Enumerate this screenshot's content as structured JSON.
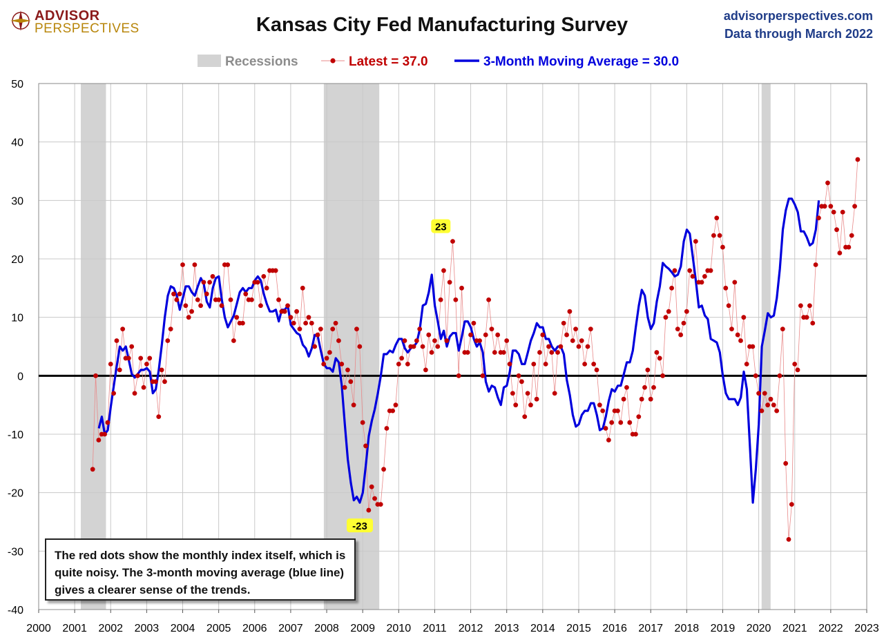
{
  "logo": {
    "line1": "ADVISOR",
    "line2": "PERSPECTIVES"
  },
  "header": {
    "title": "Kansas City Fed Manufacturing Survey",
    "site": "advisorperspectives.com",
    "data_through": "Data through March 2022"
  },
  "note": "The red dots show the monthly  index itself, which is quite noisy. The 3-month moving average (blue line) gives a clearer sense of the trends.",
  "colors": {
    "index": "#c00000",
    "ma": "#0000dd",
    "recession": "#d3d3d3",
    "zero_line": "#000000",
    "grid": "#c8c8c8",
    "callout": "#ffff33"
  },
  "chart_data": {
    "type": "line",
    "x_axis": {
      "min": 2000,
      "max": 2023,
      "ticks": [
        "2000",
        "2001",
        "2002",
        "2003",
        "2004",
        "2005",
        "2006",
        "2007",
        "2008",
        "2009",
        "2010",
        "2011",
        "2012",
        "2013",
        "2014",
        "2015",
        "2016",
        "2017",
        "2018",
        "2019",
        "2020",
        "2021",
        "2022",
        "2023"
      ]
    },
    "y_axis": {
      "min": -40,
      "max": 50,
      "ticks": [
        "-40",
        "-30",
        "-20",
        "-10",
        "0",
        "10",
        "20",
        "30",
        "40",
        "50"
      ]
    },
    "grid": true,
    "legend": {
      "placement": "top",
      "entries": [
        {
          "label": "Recessions",
          "kind": "band"
        },
        {
          "label": "Latest = 37.0",
          "kind": "dots"
        },
        {
          "label": "3-Month Moving Average = 30.0",
          "kind": "line"
        }
      ]
    },
    "recessions": [
      [
        2001.17,
        2001.87
      ],
      [
        2007.92,
        2009.46
      ],
      [
        2020.08,
        2020.33
      ]
    ],
    "annotations": [
      {
        "label": "23",
        "x": 2011.17,
        "y": 23
      },
      {
        "label": "-23",
        "x": 2008.92,
        "y": -23
      }
    ],
    "series": [
      {
        "name": "Latest = 37.0",
        "start": 2001.5,
        "step": 0.08333,
        "values": [
          -16,
          0,
          -11,
          -10,
          -10,
          -8,
          2,
          -3,
          6,
          1,
          8,
          3,
          3,
          5,
          -3,
          0,
          3,
          -2,
          2,
          3,
          -1,
          -1,
          -7,
          1,
          -1,
          6,
          8,
          14,
          13,
          14,
          19,
          12,
          10,
          11,
          19,
          13,
          12,
          16,
          14,
          16,
          17,
          13,
          13,
          12,
          19,
          19,
          13,
          6,
          10,
          9,
          9,
          14,
          13,
          13,
          16,
          16,
          12,
          17,
          15,
          18,
          18,
          18,
          13,
          11,
          11,
          12,
          10,
          9,
          11,
          8,
          15,
          9,
          10,
          9,
          5,
          7,
          8,
          2,
          3,
          4,
          8,
          9,
          6,
          2,
          -2,
          1,
          -1,
          -5,
          8,
          5,
          -8,
          -12,
          -23,
          -19,
          -21,
          -22,
          -22,
          -16,
          -9,
          -6,
          -6,
          -5,
          2,
          3,
          6,
          2,
          5,
          5,
          6,
          8,
          5,
          1,
          7,
          4,
          6,
          5,
          13,
          18,
          6,
          16,
          23,
          13,
          0,
          15,
          4,
          4,
          7,
          9,
          6,
          6,
          0,
          7,
          13,
          8,
          4,
          7,
          4,
          4,
          6,
          2,
          -3,
          -5,
          0,
          -1,
          -7,
          -3,
          -5,
          2,
          -4,
          4,
          7,
          2,
          5,
          4,
          -3,
          4,
          5,
          9,
          7,
          11,
          6,
          8,
          5,
          6,
          2,
          5,
          8,
          2,
          1,
          -5,
          -6,
          -9,
          -11,
          -8,
          -6,
          -6,
          -8,
          -4,
          -2,
          -8,
          -10,
          -10,
          -7,
          -4,
          -2,
          1,
          -4,
          -2,
          4,
          3,
          0,
          10,
          11,
          15,
          18,
          8,
          7,
          9,
          11,
          18,
          17,
          23,
          16,
          16,
          17,
          18,
          18,
          24,
          27,
          24,
          22,
          15,
          12,
          8,
          16,
          7,
          6,
          10,
          2,
          5,
          5,
          0,
          -3,
          -6,
          -3,
          -5,
          -4,
          -5,
          -6,
          0,
          8,
          -15,
          -28,
          -22,
          2,
          1,
          12,
          10,
          10,
          12,
          9,
          19,
          27,
          29,
          29,
          33,
          29,
          28,
          25,
          21,
          28,
          22,
          22,
          24,
          29,
          37
        ]
      },
      {
        "name": "3-Month Moving Average = 30.0",
        "start": 2001.67,
        "step": 0.08333,
        "values": [
          -9,
          -7,
          -10,
          -9.3,
          -5.3,
          -1.7,
          1.7,
          5,
          4.3,
          5,
          2.7,
          0.3,
          -0.3,
          0.3,
          1,
          1,
          1.3,
          0.7,
          -3,
          -2.3,
          1,
          5.3,
          10,
          13.7,
          15.3,
          15,
          13.7,
          11.3,
          13.3,
          15.3,
          15.3,
          14.3,
          13.7,
          15.3,
          16.7,
          15.7,
          12.7,
          11.7,
          15,
          16.7,
          17,
          13,
          10,
          8.3,
          9.3,
          10.3,
          12.3,
          14.3,
          15,
          14.3,
          15,
          15,
          16.3,
          17,
          16.3,
          14,
          12.3,
          11,
          11,
          11.3,
          9.3,
          11.3,
          11.3,
          12,
          8.7,
          8,
          7.3,
          7,
          5.3,
          4.7,
          3.3,
          4.7,
          7,
          6.7,
          4.3,
          2,
          1.3,
          1.3,
          0.7,
          3,
          2.3,
          -1.7,
          -8.3,
          -14.3,
          -18.3,
          -21.3,
          -20.7,
          -21.7,
          -20,
          -15.3,
          -10.3,
          -7.7,
          -5.7,
          -3,
          0,
          3.7,
          3.7,
          4.3,
          4,
          5.3,
          6.3,
          6.3,
          4.7,
          4,
          4.7,
          5,
          5.7,
          8,
          12,
          12.3,
          14.3,
          17.3,
          12,
          9.3,
          6.3,
          7.7,
          5,
          6.7,
          7.3,
          7.3,
          4.3,
          6.7,
          9.3,
          9.3,
          8.3,
          6.3,
          5,
          5.7,
          4,
          -1,
          -2.7,
          -1.7,
          -2,
          -3.7,
          -5,
          -2,
          -1.7,
          0.7,
          4.3,
          4.3,
          3.7,
          2,
          2,
          4,
          6,
          7.3,
          9,
          8.3,
          8.3,
          6.3,
          6.3,
          5,
          4.3,
          5,
          5,
          3.7,
          -0.7,
          -3.3,
          -6.7,
          -8.7,
          -8.3,
          -6.7,
          -6,
          -6,
          -4.7,
          -4.7,
          -6.7,
          -9.3,
          -9,
          -7,
          -4.3,
          -2.3,
          -2.7,
          -1.7,
          -1.7,
          0.3,
          2.3,
          2.3,
          4.3,
          8.3,
          12,
          14.7,
          13.7,
          10,
          8,
          9,
          12.7,
          15.3,
          19.3,
          18.7,
          18.3,
          17.7,
          17,
          17.3,
          18.7,
          23,
          25,
          24.3,
          20.3,
          16.3,
          11.7,
          12,
          10.3,
          9.7,
          6.3,
          6,
          5.7,
          4,
          0,
          -3,
          -4,
          -4,
          -4,
          -5,
          -3.7,
          0.7,
          -2.3,
          -11.7,
          -21.7,
          -16,
          -8.3,
          5,
          7.7,
          10.7,
          10,
          10.3,
          13.3,
          18.3,
          25,
          28.3,
          30.3,
          30.3,
          29.3,
          28,
          24.7,
          24.7,
          23.7,
          22.3,
          22.7,
          25,
          30
        ]
      }
    ]
  }
}
